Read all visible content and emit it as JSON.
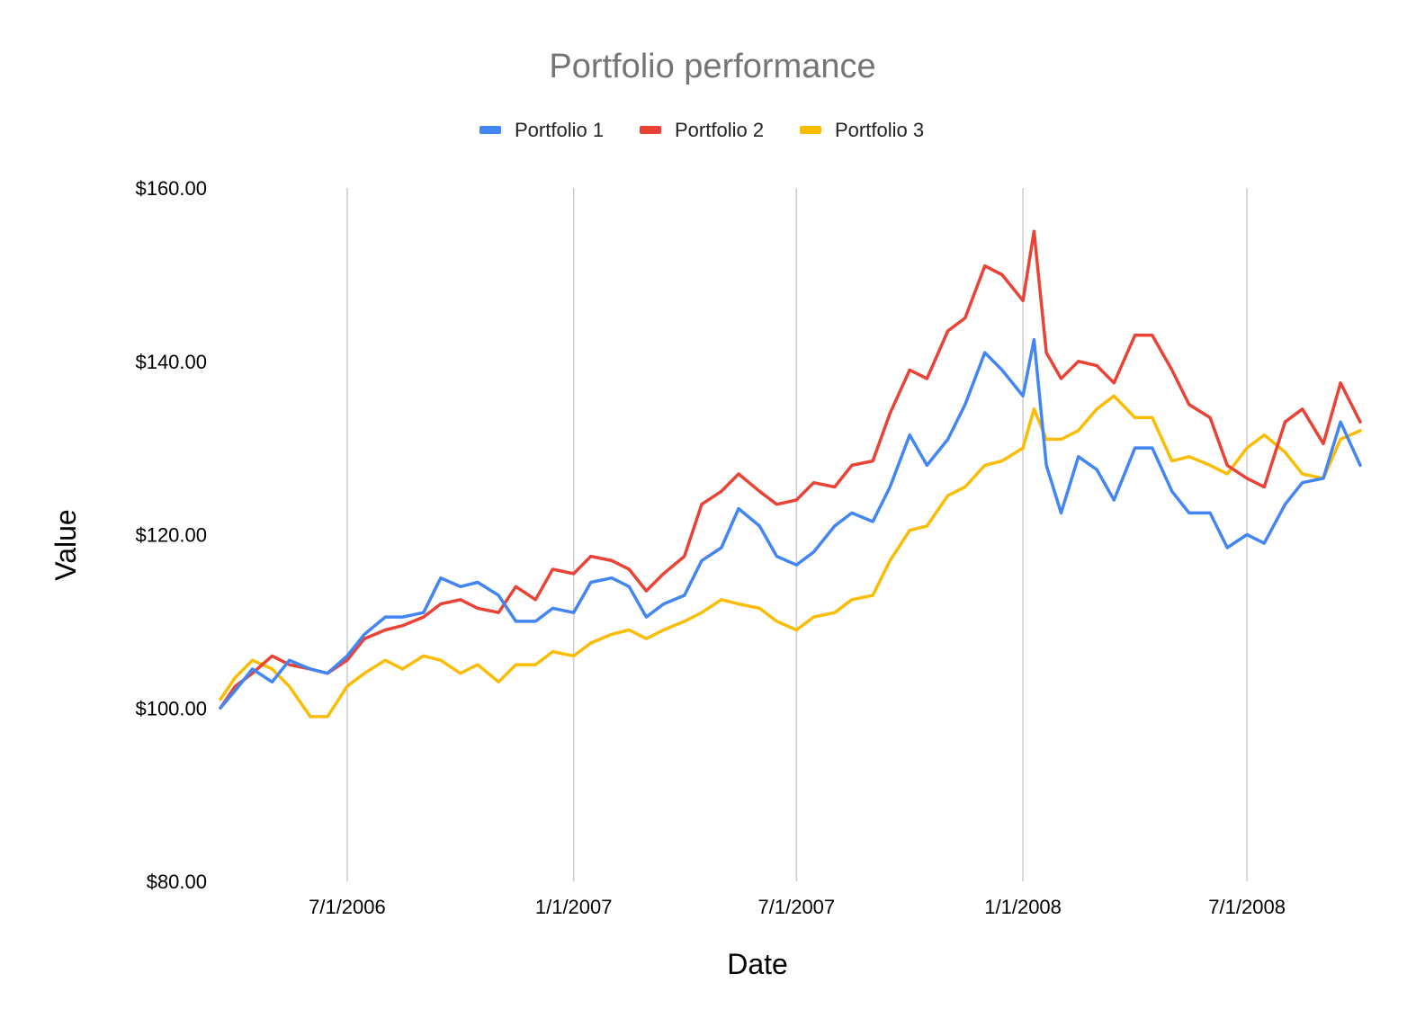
{
  "chart_data": {
    "type": "line",
    "title": "Portfolio performance",
    "xlabel": "Date",
    "ylabel": "Value",
    "x_tick_labels": [
      "7/1/2006",
      "1/1/2007",
      "7/1/2007",
      "1/1/2008",
      "7/1/2008"
    ],
    "y_tick_labels": [
      "$80.00",
      "$100.00",
      "$120.00",
      "$140.00",
      "$160.00"
    ],
    "ylim": [
      80,
      160
    ],
    "xlim": [
      "2006-03-20",
      "2008-10-01"
    ],
    "grid": "vertical",
    "legend": "top",
    "series": [
      {
        "name": "Portfolio 1",
        "color": "#4285F4",
        "points": [
          [
            "2006-03-20",
            100.0
          ],
          [
            "2006-04-01",
            102.0
          ],
          [
            "2006-04-15",
            104.5
          ],
          [
            "2006-05-01",
            103.0
          ],
          [
            "2006-05-15",
            105.5
          ],
          [
            "2006-06-01",
            104.5
          ],
          [
            "2006-06-15",
            104.0
          ],
          [
            "2006-07-01",
            106.0
          ],
          [
            "2006-07-15",
            108.5
          ],
          [
            "2006-08-01",
            110.5
          ],
          [
            "2006-08-15",
            110.5
          ],
          [
            "2006-09-01",
            111.0
          ],
          [
            "2006-09-15",
            115.0
          ],
          [
            "2006-10-01",
            114.0
          ],
          [
            "2006-10-15",
            114.5
          ],
          [
            "2006-11-01",
            113.0
          ],
          [
            "2006-11-15",
            110.0
          ],
          [
            "2006-12-01",
            110.0
          ],
          [
            "2006-12-15",
            111.5
          ],
          [
            "2007-01-01",
            111.0
          ],
          [
            "2007-01-15",
            114.5
          ],
          [
            "2007-02-01",
            115.0
          ],
          [
            "2007-02-15",
            114.0
          ],
          [
            "2007-03-01",
            110.5
          ],
          [
            "2007-03-15",
            112.0
          ],
          [
            "2007-04-01",
            113.0
          ],
          [
            "2007-04-15",
            117.0
          ],
          [
            "2007-05-01",
            118.5
          ],
          [
            "2007-05-15",
            123.0
          ],
          [
            "2007-06-01",
            121.0
          ],
          [
            "2007-06-15",
            117.5
          ],
          [
            "2007-07-01",
            116.5
          ],
          [
            "2007-07-15",
            118.0
          ],
          [
            "2007-08-01",
            121.0
          ],
          [
            "2007-08-15",
            122.5
          ],
          [
            "2007-09-01",
            121.5
          ],
          [
            "2007-09-15",
            125.5
          ],
          [
            "2007-10-01",
            131.5
          ],
          [
            "2007-10-15",
            128.0
          ],
          [
            "2007-11-01",
            131.0
          ],
          [
            "2007-11-15",
            135.0
          ],
          [
            "2007-12-01",
            141.0
          ],
          [
            "2007-12-15",
            139.0
          ],
          [
            "2008-01-01",
            136.0
          ],
          [
            "2008-01-10",
            142.5
          ],
          [
            "2008-01-20",
            128.0
          ],
          [
            "2008-02-01",
            122.5
          ],
          [
            "2008-02-15",
            129.0
          ],
          [
            "2008-03-01",
            127.5
          ],
          [
            "2008-03-15",
            124.0
          ],
          [
            "2008-04-01",
            130.0
          ],
          [
            "2008-04-15",
            130.0
          ],
          [
            "2008-05-01",
            125.0
          ],
          [
            "2008-05-15",
            122.5
          ],
          [
            "2008-06-01",
            122.5
          ],
          [
            "2008-06-15",
            118.5
          ],
          [
            "2008-07-01",
            120.0
          ],
          [
            "2008-07-15",
            119.0
          ],
          [
            "2008-08-01",
            123.5
          ],
          [
            "2008-08-15",
            126.0
          ],
          [
            "2008-09-01",
            126.5
          ],
          [
            "2008-09-15",
            133.0
          ],
          [
            "2008-10-01",
            128.0
          ]
        ]
      },
      {
        "name": "Portfolio 2",
        "color": "#EA4335",
        "points": [
          [
            "2006-03-20",
            100.0
          ],
          [
            "2006-04-01",
            102.5
          ],
          [
            "2006-04-15",
            104.0
          ],
          [
            "2006-05-01",
            106.0
          ],
          [
            "2006-05-15",
            105.0
          ],
          [
            "2006-06-01",
            104.5
          ],
          [
            "2006-06-15",
            104.0
          ],
          [
            "2006-07-01",
            105.5
          ],
          [
            "2006-07-15",
            108.0
          ],
          [
            "2006-08-01",
            109.0
          ],
          [
            "2006-08-15",
            109.5
          ],
          [
            "2006-09-01",
            110.5
          ],
          [
            "2006-09-15",
            112.0
          ],
          [
            "2006-10-01",
            112.5
          ],
          [
            "2006-10-15",
            111.5
          ],
          [
            "2006-11-01",
            111.0
          ],
          [
            "2006-11-15",
            114.0
          ],
          [
            "2006-12-01",
            112.5
          ],
          [
            "2006-12-15",
            116.0
          ],
          [
            "2007-01-01",
            115.5
          ],
          [
            "2007-01-15",
            117.5
          ],
          [
            "2007-02-01",
            117.0
          ],
          [
            "2007-02-15",
            116.0
          ],
          [
            "2007-03-01",
            113.5
          ],
          [
            "2007-03-15",
            115.5
          ],
          [
            "2007-04-01",
            117.5
          ],
          [
            "2007-04-15",
            123.5
          ],
          [
            "2007-05-01",
            125.0
          ],
          [
            "2007-05-15",
            127.0
          ],
          [
            "2007-06-01",
            125.0
          ],
          [
            "2007-06-15",
            123.5
          ],
          [
            "2007-07-01",
            124.0
          ],
          [
            "2007-07-15",
            126.0
          ],
          [
            "2007-08-01",
            125.5
          ],
          [
            "2007-08-15",
            128.0
          ],
          [
            "2007-09-01",
            128.5
          ],
          [
            "2007-09-15",
            134.0
          ],
          [
            "2007-10-01",
            139.0
          ],
          [
            "2007-10-15",
            138.0
          ],
          [
            "2007-11-01",
            143.5
          ],
          [
            "2007-11-15",
            145.0
          ],
          [
            "2007-12-01",
            151.0
          ],
          [
            "2007-12-15",
            150.0
          ],
          [
            "2008-01-01",
            147.0
          ],
          [
            "2008-01-10",
            155.0
          ],
          [
            "2008-01-20",
            141.0
          ],
          [
            "2008-02-01",
            138.0
          ],
          [
            "2008-02-15",
            140.0
          ],
          [
            "2008-03-01",
            139.5
          ],
          [
            "2008-03-15",
            137.5
          ],
          [
            "2008-04-01",
            143.0
          ],
          [
            "2008-04-15",
            143.0
          ],
          [
            "2008-05-01",
            139.0
          ],
          [
            "2008-05-15",
            135.0
          ],
          [
            "2008-06-01",
            133.5
          ],
          [
            "2008-06-15",
            128.0
          ],
          [
            "2008-07-01",
            126.5
          ],
          [
            "2008-07-15",
            125.5
          ],
          [
            "2008-08-01",
            133.0
          ],
          [
            "2008-08-15",
            134.5
          ],
          [
            "2008-09-01",
            130.5
          ],
          [
            "2008-09-15",
            137.5
          ],
          [
            "2008-10-01",
            133.0
          ]
        ]
      },
      {
        "name": "Portfolio 3",
        "color": "#FBBC04",
        "points": [
          [
            "2006-03-20",
            101.0
          ],
          [
            "2006-04-01",
            103.5
          ],
          [
            "2006-04-15",
            105.5
          ],
          [
            "2006-05-01",
            104.5
          ],
          [
            "2006-05-15",
            102.5
          ],
          [
            "2006-06-01",
            99.0
          ],
          [
            "2006-06-15",
            99.0
          ],
          [
            "2006-07-01",
            102.5
          ],
          [
            "2006-07-15",
            104.0
          ],
          [
            "2006-08-01",
            105.5
          ],
          [
            "2006-08-15",
            104.5
          ],
          [
            "2006-09-01",
            106.0
          ],
          [
            "2006-09-15",
            105.5
          ],
          [
            "2006-10-01",
            104.0
          ],
          [
            "2006-10-15",
            105.0
          ],
          [
            "2006-11-01",
            103.0
          ],
          [
            "2006-11-15",
            105.0
          ],
          [
            "2006-12-01",
            105.0
          ],
          [
            "2006-12-15",
            106.5
          ],
          [
            "2007-01-01",
            106.0
          ],
          [
            "2007-01-15",
            107.5
          ],
          [
            "2007-02-01",
            108.5
          ],
          [
            "2007-02-15",
            109.0
          ],
          [
            "2007-03-01",
            108.0
          ],
          [
            "2007-03-15",
            109.0
          ],
          [
            "2007-04-01",
            110.0
          ],
          [
            "2007-04-15",
            111.0
          ],
          [
            "2007-05-01",
            112.5
          ],
          [
            "2007-05-15",
            112.0
          ],
          [
            "2007-06-01",
            111.5
          ],
          [
            "2007-06-15",
            110.0
          ],
          [
            "2007-07-01",
            109.0
          ],
          [
            "2007-07-15",
            110.5
          ],
          [
            "2007-08-01",
            111.0
          ],
          [
            "2007-08-15",
            112.5
          ],
          [
            "2007-09-01",
            113.0
          ],
          [
            "2007-09-15",
            117.0
          ],
          [
            "2007-10-01",
            120.5
          ],
          [
            "2007-10-15",
            121.0
          ],
          [
            "2007-11-01",
            124.5
          ],
          [
            "2007-11-15",
            125.5
          ],
          [
            "2007-12-01",
            128.0
          ],
          [
            "2007-12-15",
            128.5
          ],
          [
            "2008-01-01",
            130.0
          ],
          [
            "2008-01-10",
            134.5
          ],
          [
            "2008-01-20",
            131.0
          ],
          [
            "2008-02-01",
            131.0
          ],
          [
            "2008-02-15",
            132.0
          ],
          [
            "2008-03-01",
            134.5
          ],
          [
            "2008-03-15",
            136.0
          ],
          [
            "2008-04-01",
            133.5
          ],
          [
            "2008-04-15",
            133.5
          ],
          [
            "2008-05-01",
            128.5
          ],
          [
            "2008-05-15",
            129.0
          ],
          [
            "2008-06-01",
            128.0
          ],
          [
            "2008-06-15",
            127.0
          ],
          [
            "2008-07-01",
            130.0
          ],
          [
            "2008-07-15",
            131.5
          ],
          [
            "2008-08-01",
            129.5
          ],
          [
            "2008-08-15",
            127.0
          ],
          [
            "2008-09-01",
            126.5
          ],
          [
            "2008-09-15",
            131.0
          ],
          [
            "2008-10-01",
            132.0
          ]
        ]
      }
    ]
  }
}
